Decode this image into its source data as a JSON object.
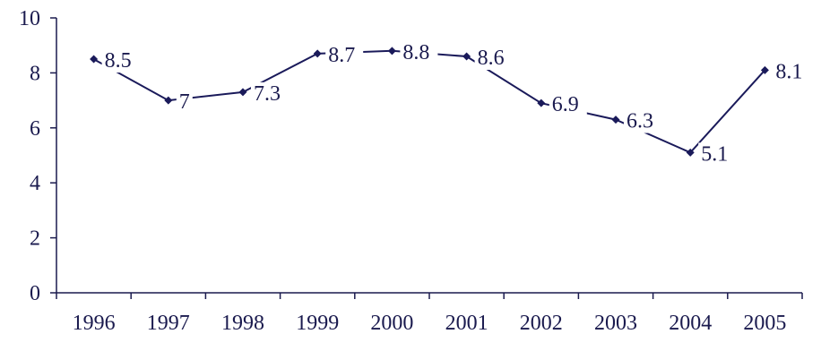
{
  "chart_data": {
    "type": "line",
    "title": "",
    "xlabel": "",
    "ylabel": "",
    "categories": [
      "1996",
      "1997",
      "1998",
      "1999",
      "2000",
      "2001",
      "2002",
      "2003",
      "2004",
      "2005"
    ],
    "series": [
      {
        "values": [
          8.5,
          7,
          7.3,
          8.7,
          8.8,
          8.6,
          6.9,
          6.3,
          5.1,
          8.1
        ],
        "labels": [
          "8.5",
          "7",
          "7.3",
          "8.7",
          "8.8",
          "8.6",
          "6.9",
          "6.3",
          "5.1",
          "8.1"
        ]
      }
    ],
    "yticks": [
      "0",
      "2",
      "4",
      "6",
      "8",
      "10"
    ],
    "ylim": [
      0,
      10
    ],
    "grid": false,
    "legend": "none",
    "colors": {
      "line": "#1a1a5a",
      "axis": "#1a1a4e",
      "text": "#1a1a4e"
    }
  }
}
